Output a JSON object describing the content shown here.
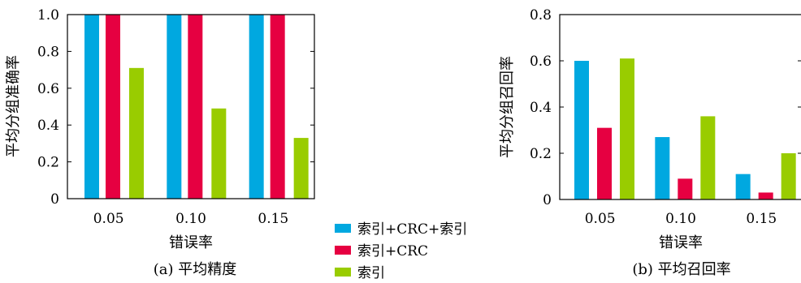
{
  "colors": {
    "series1": "#00a8e0",
    "series2": "#e60041",
    "series3": "#99cc00"
  },
  "legend": [
    "索引+CRC+索引",
    "索引+CRC",
    "索引"
  ],
  "chart_data": [
    {
      "type": "bar",
      "caption": "(a) 平均精度",
      "xlabel": "错误率",
      "ylabel": "平均分组准确率",
      "categories": [
        "0.05",
        "0.10",
        "0.15"
      ],
      "ylim": [
        0,
        1.0
      ],
      "yticks": [
        "0",
        "0.2",
        "0.4",
        "0.6",
        "0.8",
        "1.0"
      ],
      "series": [
        {
          "name": "索引+CRC+索引",
          "values": [
            1.0,
            1.0,
            1.0
          ]
        },
        {
          "name": "索引+CRC",
          "values": [
            1.0,
            1.0,
            1.0
          ]
        },
        {
          "name": "索引",
          "values": [
            0.71,
            0.49,
            0.33
          ]
        }
      ]
    },
    {
      "type": "bar",
      "caption": "(b) 平均召回率",
      "xlabel": "错误率",
      "ylabel": "平均分组召回率",
      "categories": [
        "0.05",
        "0.10",
        "0.15"
      ],
      "ylim": [
        0,
        0.8
      ],
      "yticks": [
        "0",
        "0.2",
        "0.4",
        "0.6",
        "0.8"
      ],
      "series": [
        {
          "name": "索引+CRC+索引",
          "values": [
            0.6,
            0.27,
            0.11
          ]
        },
        {
          "name": "索引+CRC",
          "values": [
            0.31,
            0.09,
            0.03
          ]
        },
        {
          "name": "索引",
          "values": [
            0.61,
            0.36,
            0.2
          ]
        }
      ]
    }
  ]
}
